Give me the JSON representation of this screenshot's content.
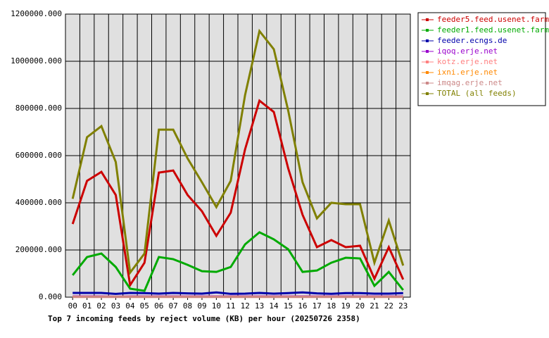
{
  "chart_data": {
    "type": "line",
    "title": "Top 7 incoming feeds by reject volume (KB) per hour (20250726 2358)",
    "categories": [
      "00",
      "01",
      "02",
      "03",
      "04",
      "05",
      "06",
      "07",
      "08",
      "09",
      "10",
      "11",
      "12",
      "13",
      "14",
      "15",
      "16",
      "17",
      "18",
      "19",
      "20",
      "21",
      "22",
      "23"
    ],
    "series": [
      {
        "name": "feeder5.feed.usenet.farm",
        "color": "#cc0000",
        "values": [
          310000,
          493000,
          531000,
          433000,
          51000,
          146000,
          528000,
          537000,
          433000,
          364000,
          260000,
          358000,
          627000,
          833000,
          785000,
          546000,
          349000,
          212000,
          242000,
          212000,
          218000,
          78000,
          212000,
          75000
        ]
      },
      {
        "name": "feeder1.feed.usenet.farm",
        "color": "#00aa00",
        "values": [
          93000,
          170000,
          185000,
          128000,
          36000,
          27000,
          170000,
          161000,
          137000,
          110000,
          107000,
          128000,
          224000,
          275000,
          245000,
          203000,
          107000,
          113000,
          146000,
          167000,
          164000,
          48000,
          107000,
          30000
        ]
      },
      {
        "name": "feeder.ecngs.de",
        "color": "#0000aa",
        "values": [
          18000,
          18000,
          18000,
          14000,
          18000,
          17000,
          15000,
          18000,
          16000,
          15000,
          20000,
          14000,
          15000,
          18000,
          15000,
          17000,
          20000,
          16000,
          14000,
          17000,
          17000,
          15000,
          15000,
          17000
        ]
      },
      {
        "name": "iqoq.erje.net",
        "color": "#9900cc",
        "values": [
          3000,
          3000,
          3000,
          2000,
          3000,
          3000,
          3000,
          3000,
          3000,
          3000,
          3000,
          3000,
          3000,
          3000,
          3000,
          3000,
          3000,
          3000,
          3000,
          3000,
          3000,
          3000,
          3000,
          3000
        ]
      },
      {
        "name": "kotz.erje.net",
        "color": "#ff8080",
        "values": [
          2000,
          2000,
          2000,
          2000,
          2000,
          2000,
          2000,
          2000,
          2000,
          2000,
          2000,
          2000,
          2000,
          2000,
          2000,
          2000,
          2000,
          2000,
          2000,
          2000,
          2000,
          2000,
          2000,
          2000
        ]
      },
      {
        "name": "ixni.erje.net",
        "color": "#ff8800",
        "values": [
          1000,
          1000,
          1000,
          1000,
          1000,
          1000,
          1000,
          1000,
          1000,
          1000,
          1000,
          1000,
          1000,
          1000,
          1000,
          1000,
          1000,
          1000,
          1000,
          1000,
          1000,
          1000,
          1000,
          1000
        ]
      },
      {
        "name": "imqag.erje.net",
        "color": "#cc8888",
        "values": [
          1000,
          1000,
          1000,
          1000,
          1000,
          1000,
          1000,
          1000,
          1000,
          1000,
          1000,
          1000,
          1000,
          1000,
          1000,
          1000,
          1000,
          1000,
          1000,
          1000,
          1000,
          1000,
          1000,
          1000
        ]
      },
      {
        "name": "TOTAL (all feeds)",
        "color": "#808000",
        "values": [
          417000,
          678000,
          725000,
          573000,
          104000,
          185000,
          710000,
          710000,
          588000,
          487000,
          382000,
          493000,
          857000,
          1128000,
          1051000,
          791000,
          487000,
          334000,
          400000,
          394000,
          394000,
          146000,
          325000,
          134000
        ]
      }
    ],
    "ylim": [
      0,
      1200000
    ],
    "yticks": [
      {
        "value": 0,
        "label": "0.000"
      },
      {
        "value": 200000,
        "label": "200000.000"
      },
      {
        "value": 400000,
        "label": "400000.000"
      },
      {
        "value": 600000,
        "label": "600000.000"
      },
      {
        "value": 800000,
        "label": "800000.000"
      },
      {
        "value": 1000000,
        "label": "1000000.000"
      },
      {
        "value": 1200000,
        "label": "1200000.000"
      }
    ],
    "grid": true,
    "background": "#e0e0e0",
    "legend": "right"
  }
}
